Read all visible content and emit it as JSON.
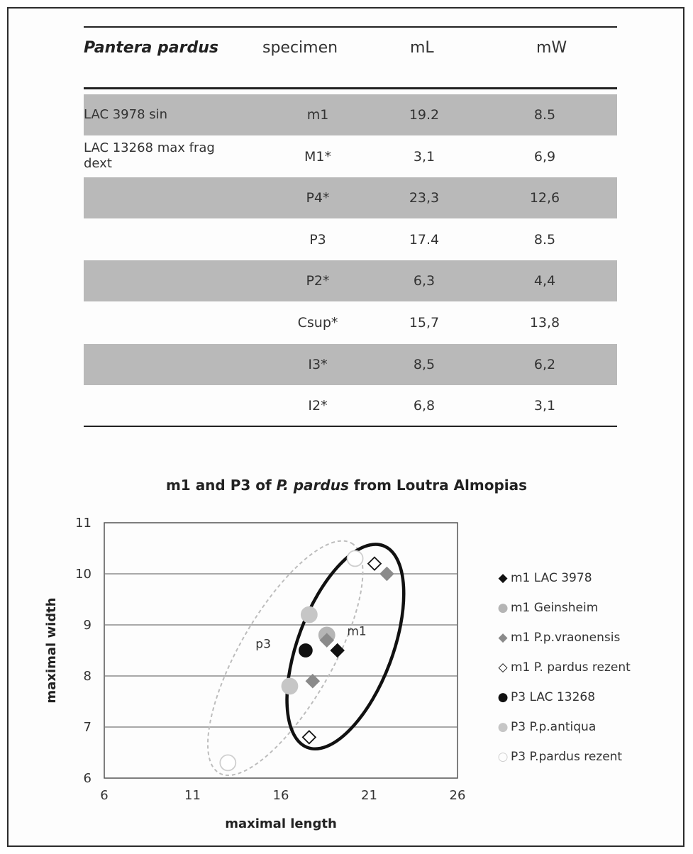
{
  "table": {
    "headers": [
      "Pantera pardus",
      "specimen",
      "mL",
      "mW"
    ],
    "rows": [
      {
        "label": "LAC 3978 sin",
        "specimen": "m1",
        "mL": "19.2",
        "mW": "8.5",
        "shaded": true
      },
      {
        "label": "LAC 13268 max frag dext",
        "specimen": "M1*",
        "mL": "3,1",
        "mW": "6,9",
        "shaded": false
      },
      {
        "label": "",
        "specimen": "P4*",
        "mL": "23,3",
        "mW": "12,6",
        "shaded": true
      },
      {
        "label": "",
        "specimen": "P3",
        "mL": "17.4",
        "mW": "8.5",
        "shaded": false
      },
      {
        "label": "",
        "specimen": "P2*",
        "mL": "6,3",
        "mW": "4,4",
        "shaded": true
      },
      {
        "label": "",
        "specimen": "Csup*",
        "mL": "15,7",
        "mW": "13,8",
        "shaded": false
      },
      {
        "label": "",
        "specimen": "I3*",
        "mL": "8,5",
        "mW": "6,2",
        "shaded": true
      },
      {
        "label": "",
        "specimen": "I2*",
        "mL": "6,8",
        "mW": "3,1",
        "shaded": false
      }
    ]
  },
  "chart_data": {
    "type": "scatter",
    "title_parts": [
      "m1 and P3 of ",
      "P. pardus",
      " from Loutra Almopias"
    ],
    "xlabel": "maximal length",
    "ylabel": "maximal width",
    "xlim": [
      6,
      26
    ],
    "ylim": [
      6,
      11
    ],
    "xticks": [
      6,
      11,
      16,
      21,
      26
    ],
    "yticks": [
      6,
      7,
      8,
      9,
      10,
      11
    ],
    "grid": "horizontal",
    "legend_position": "right",
    "series": [
      {
        "name": "m1 LAC 3978",
        "marker": "diamond-filled",
        "color": "#111111",
        "points": [
          [
            19.2,
            8.5
          ]
        ]
      },
      {
        "name": "m1 Geinsheim",
        "marker": "circle-filled",
        "color": "#b5b5b5",
        "points": [
          [
            18.6,
            8.8
          ]
        ]
      },
      {
        "name": "m1 P.p.vraonensis",
        "marker": "diamond-filled",
        "color": "#8a8a8a",
        "points": [
          [
            22.0,
            10.0
          ],
          [
            17.8,
            7.9
          ],
          [
            18.6,
            8.7
          ]
        ]
      },
      {
        "name": "m1 P. pardus rezent",
        "marker": "diamond-open",
        "color": "#111111",
        "points": [
          [
            21.3,
            10.2
          ],
          [
            17.6,
            6.8
          ]
        ]
      },
      {
        "name": "P3 LAC 13268",
        "marker": "circle-filled",
        "color": "#111111",
        "points": [
          [
            17.4,
            8.5
          ]
        ]
      },
      {
        "name": "P3 P.p.antiqua",
        "marker": "circle-filled",
        "color": "#c6c6c6",
        "points": [
          [
            17.6,
            9.2
          ],
          [
            16.5,
            7.8
          ]
        ]
      },
      {
        "name": "P3 P.pardus rezent",
        "marker": "circle-open",
        "color": "#cfcfcf",
        "points": [
          [
            13.0,
            6.3
          ],
          [
            20.2,
            10.3
          ]
        ]
      }
    ],
    "annotations": [
      {
        "text": "p3",
        "x": 15.0,
        "y": 8.55
      },
      {
        "text": "m1",
        "x": 20.3,
        "y": 8.8
      }
    ],
    "ellipses": [
      {
        "label": "p3",
        "style": "dashed",
        "color": "#bdbdbd",
        "from": [
          12.5,
          6.1
        ],
        "to": [
          20.0,
          10.6
        ],
        "minor": 3.5
      },
      {
        "label": "m1",
        "style": "solid-thick",
        "color": "#111111",
        "from": [
          17.5,
          6.6
        ],
        "to": [
          21.8,
          10.55
        ],
        "minor": 4.4
      }
    ]
  }
}
